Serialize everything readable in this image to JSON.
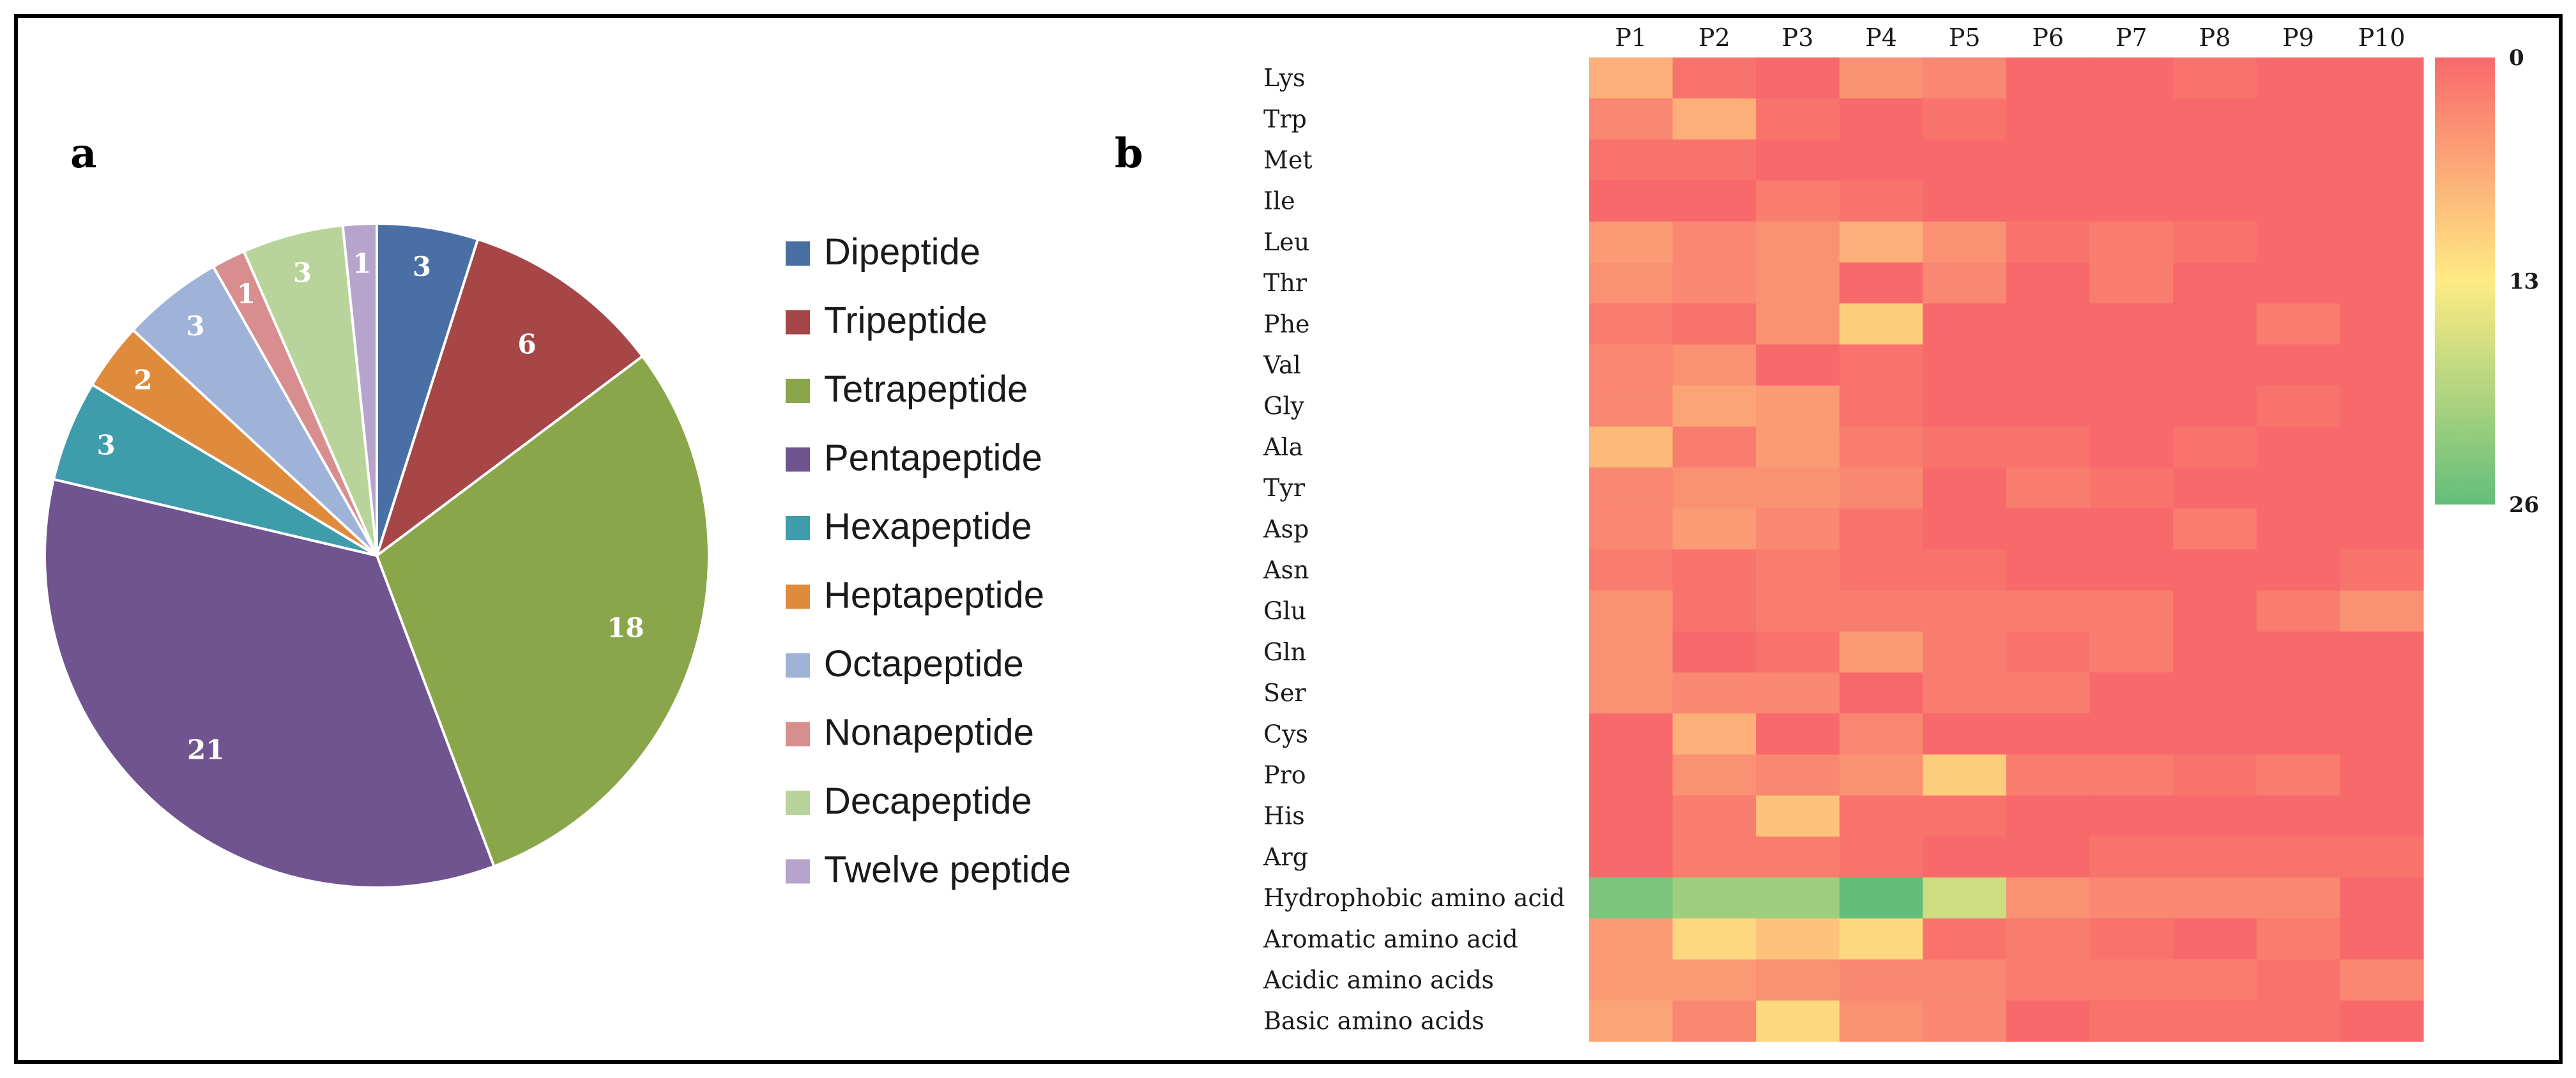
{
  "panels": {
    "a": "a",
    "b": "b"
  },
  "chart_data": [
    {
      "type": "pie",
      "title": "",
      "categories": [
        "Dipeptide",
        "Tripeptide",
        "Tetrapeptide",
        "Pentapeptide",
        "Hexapeptide",
        "Heptapeptide",
        "Octapeptide",
        "Nonapeptide",
        "Decapeptide",
        "Twelve peptide"
      ],
      "values": [
        3,
        6,
        18,
        21,
        3,
        2,
        3,
        1,
        3,
        1
      ],
      "colors": [
        "#4a6fa5",
        "#a64646",
        "#8aa64a",
        "#6f548f",
        "#3f9cab",
        "#e08a3c",
        "#9fb2d8",
        "#d88e8e",
        "#b9d49a",
        "#b7a4cc"
      ],
      "legend_position": "right"
    },
    {
      "type": "heatmap",
      "columns": [
        "P1",
        "P2",
        "P3",
        "P4",
        "P5",
        "P6",
        "P7",
        "P8",
        "P9",
        "P10"
      ],
      "rows": [
        "Lys",
        "Trp",
        "Met",
        "Ile",
        "Leu",
        "Thr",
        "Phe",
        "Val",
        "Gly",
        "Ala",
        "Tyr",
        "Asp",
        "Asn",
        "Glu",
        "Gln",
        "Ser",
        "Cys",
        "Pro",
        "His",
        "Arg",
        "Hydrophobic amino acid",
        "Aromatic amino acid",
        "Acidic amino acids",
        "Basic amino acids"
      ],
      "values": [
        [
          7,
          1,
          0,
          4,
          3,
          0,
          0,
          1,
          0,
          0
        ],
        [
          3,
          7,
          1,
          0,
          1,
          0,
          0,
          0,
          0,
          0
        ],
        [
          1,
          1,
          0,
          0,
          0,
          0,
          0,
          0,
          0,
          0
        ],
        [
          0,
          0,
          2,
          1,
          0,
          0,
          0,
          0,
          0,
          0
        ],
        [
          5,
          3,
          4,
          7,
          4,
          1,
          2,
          1,
          0,
          0
        ],
        [
          4,
          3,
          4,
          0,
          3,
          0,
          2,
          0,
          0,
          0
        ],
        [
          2,
          1,
          4,
          10,
          0,
          0,
          0,
          0,
          2,
          0
        ],
        [
          3,
          4,
          0,
          1,
          0,
          0,
          0,
          0,
          0,
          0
        ],
        [
          3,
          6,
          5,
          1,
          0,
          0,
          0,
          0,
          1,
          0
        ],
        [
          8,
          2,
          5,
          2,
          1,
          1,
          0,
          1,
          0,
          0
        ],
        [
          3,
          4,
          4,
          3,
          0,
          2,
          1,
          0,
          0,
          0
        ],
        [
          3,
          5,
          3,
          1,
          0,
          0,
          0,
          2,
          0,
          0
        ],
        [
          2,
          1,
          2,
          1,
          1,
          0,
          0,
          0,
          0,
          1
        ],
        [
          4,
          1,
          2,
          2,
          2,
          2,
          2,
          0,
          2,
          4
        ],
        [
          4,
          0,
          1,
          5,
          2,
          1,
          2,
          0,
          0,
          0
        ],
        [
          4,
          3,
          3,
          0,
          2,
          2,
          0,
          0,
          0,
          0
        ],
        [
          0,
          7,
          0,
          3,
          0,
          0,
          0,
          0,
          0,
          0
        ],
        [
          0,
          4,
          3,
          4,
          10,
          2,
          2,
          1,
          2,
          0
        ],
        [
          0,
          2,
          9,
          1,
          1,
          0,
          0,
          0,
          0,
          0
        ],
        [
          0,
          2,
          2,
          1,
          0,
          0,
          1,
          1,
          1,
          1
        ],
        [
          24,
          21,
          21,
          26,
          17,
          4,
          3,
          3,
          3,
          0
        ],
        [
          5,
          11,
          9,
          11,
          1,
          2,
          1,
          0,
          2,
          0
        ],
        [
          5,
          5,
          4,
          3,
          3,
          2,
          2,
          2,
          1,
          3
        ],
        [
          6,
          3,
          11,
          4,
          3,
          0,
          1,
          1,
          1,
          0
        ]
      ],
      "colorscale": {
        "min": 0,
        "mid": 13,
        "max": 26,
        "min_color": "#f8696b",
        "mid_color": "#ffeb84",
        "max_color": "#63be7b"
      },
      "scale_ticks": [
        "0",
        "13",
        "26"
      ]
    }
  ]
}
